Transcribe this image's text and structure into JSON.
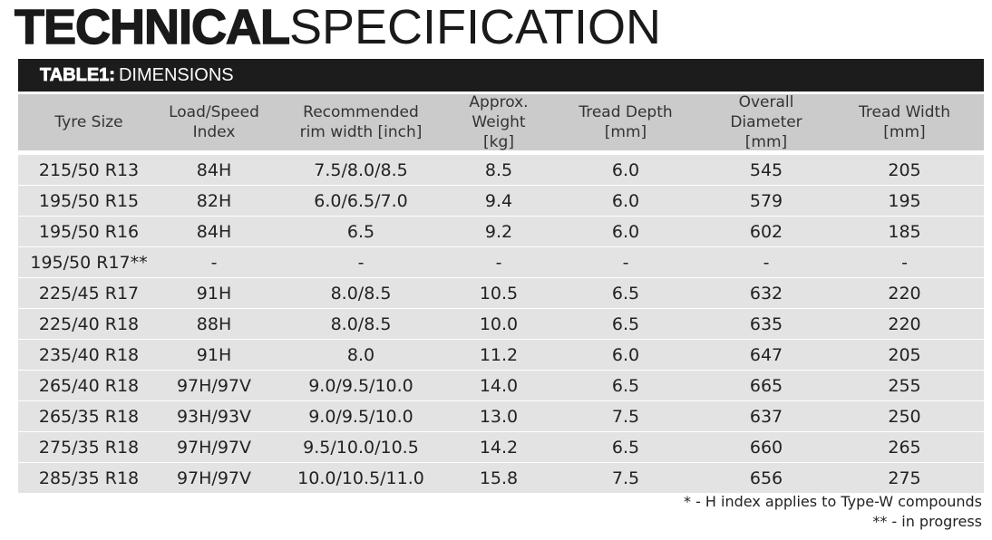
{
  "title": {
    "bold": "TECHNICAL",
    "light": "SPECIFICATION"
  },
  "table_label": {
    "bold": "TABLE1:",
    "light": "DIMENSIONS"
  },
  "columns": [
    "Tyre Size",
    "Load/Speed\nIndex",
    "Recommended\nrim width [inch]",
    "Approx. Weight\n[kg]",
    "Tread Depth\n[mm]",
    "Overall Diameter\n[mm]",
    "Tread Width\n[mm]"
  ],
  "rows": [
    [
      "215/50 R13",
      "84H",
      "7.5/8.0/8.5",
      "8.5",
      "6.0",
      "545",
      "205"
    ],
    [
      "195/50 R15",
      "82H",
      "6.0/6.5/7.0",
      "9.4",
      "6.0",
      "579",
      "195"
    ],
    [
      "195/50 R16",
      "84H",
      "6.5",
      "9.2",
      "6.0",
      "602",
      "185"
    ],
    [
      "195/50 R17**",
      "-",
      "-",
      "-",
      "-",
      "-",
      "-"
    ],
    [
      "225/45 R17",
      "91H",
      "8.0/8.5",
      "10.5",
      "6.5",
      "632",
      "220"
    ],
    [
      "225/40 R18",
      "88H",
      "8.0/8.5",
      "10.0",
      "6.5",
      "635",
      "220"
    ],
    [
      "235/40 R18",
      "91H",
      "8.0",
      "11.2",
      "6.0",
      "647",
      "205"
    ],
    [
      "265/40 R18",
      "97H/97V",
      "9.0/9.5/10.0",
      "14.0",
      "6.5",
      "665",
      "255"
    ],
    [
      "265/35 R18",
      "93H/93V",
      "9.0/9.5/10.0",
      "13.0",
      "7.5",
      "637",
      "250"
    ],
    [
      "275/35 R18",
      "97H/97V",
      "9.5/10.0/10.5",
      "14.2",
      "6.5",
      "660",
      "265"
    ],
    [
      "285/35 R18",
      "97H/97V",
      "10.0/10.5/11.0",
      "15.8",
      "7.5",
      "656",
      "275"
    ]
  ],
  "footnotes": [
    "* - H index applies to Type-W compounds",
    "** - in progress"
  ]
}
